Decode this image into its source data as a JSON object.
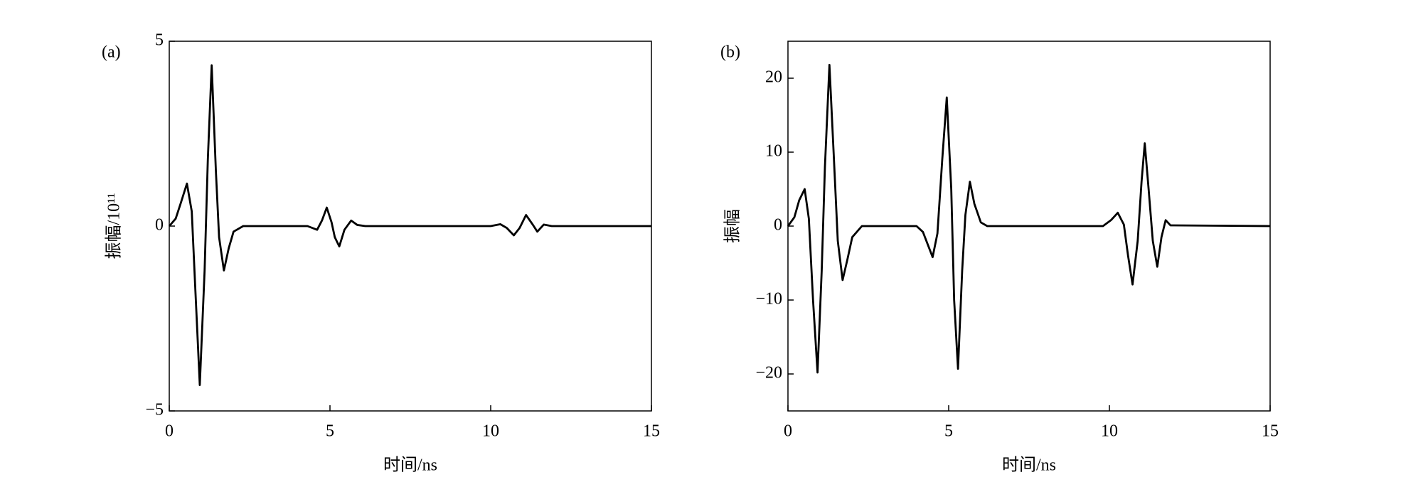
{
  "chart_data": [
    {
      "type": "line",
      "panel": "(a)",
      "x_label": "时间/ns",
      "y_label": "振幅/10¹¹",
      "xlim": [
        0,
        15
      ],
      "xticks": [
        0,
        5,
        10,
        15
      ],
      "ylim": [
        -5,
        5
      ],
      "yticks": [
        {
          "value": -5,
          "label": "−5"
        },
        0,
        5
      ],
      "series": [
        {
          "color": "#000000",
          "x": [
            0,
            0.2,
            0.35,
            0.55,
            0.7,
            0.8,
            0.95,
            1.1,
            1.2,
            1.32,
            1.45,
            1.55,
            1.7,
            1.85,
            2.0,
            2.3,
            4.3,
            4.6,
            4.75,
            4.9,
            5.05,
            5.15,
            5.29,
            5.45,
            5.66,
            5.85,
            6.1,
            10.0,
            10.3,
            10.5,
            10.72,
            10.9,
            11.1,
            11.3,
            11.45,
            11.65,
            11.9,
            15
          ],
          "values": [
            0,
            0.2,
            0.6,
            1.15,
            0.4,
            -1.5,
            -4.3,
            -1.2,
            1.8,
            4.35,
            1.5,
            -0.3,
            -1.2,
            -0.6,
            -0.15,
            0,
            0,
            -0.1,
            0.15,
            0.5,
            0.1,
            -0.3,
            -0.55,
            -0.1,
            0.15,
            0.03,
            0,
            0,
            0.05,
            -0.05,
            -0.25,
            -0.05,
            0.3,
            0.05,
            -0.15,
            0.04,
            0,
            0
          ]
        }
      ]
    },
    {
      "type": "line",
      "panel": "(b)",
      "x_label": "时间/ns",
      "y_label": "振幅",
      "xlim": [
        0,
        15
      ],
      "xticks": [
        0,
        5,
        10,
        15
      ],
      "ylim": [
        -25,
        25
      ],
      "yticks": [
        {
          "value": -20,
          "label": "−20"
        },
        {
          "value": -10,
          "label": "−10"
        },
        0,
        10,
        20
      ],
      "series": [
        {
          "color": "#000000",
          "x": [
            0,
            0.2,
            0.35,
            0.52,
            0.65,
            0.78,
            0.92,
            1.05,
            1.15,
            1.29,
            1.42,
            1.55,
            1.7,
            1.85,
            2.0,
            2.3,
            4.0,
            4.2,
            4.5,
            4.65,
            4.8,
            4.94,
            5.08,
            5.17,
            5.29,
            5.42,
            5.52,
            5.66,
            5.8,
            6.0,
            6.2,
            9.8,
            10.05,
            10.26,
            10.45,
            10.58,
            10.72,
            10.88,
            11.0,
            11.1,
            11.22,
            11.35,
            11.49,
            11.62,
            11.75,
            11.9,
            15
          ],
          "values": [
            0,
            1.2,
            3.5,
            5,
            1,
            -10,
            -19.8,
            -6,
            8,
            21.8,
            10,
            -2,
            -7.3,
            -4.5,
            -1.5,
            0,
            0,
            -0.8,
            -4.2,
            -1,
            9,
            17.4,
            5,
            -10,
            -19.3,
            -6,
            1.5,
            6,
            3,
            0.5,
            0,
            0,
            0.8,
            1.8,
            0.2,
            -4,
            -7.9,
            -2,
            6,
            11.2,
            5,
            -2,
            -5.5,
            -1.5,
            0.8,
            0.1,
            0
          ]
        }
      ]
    }
  ]
}
